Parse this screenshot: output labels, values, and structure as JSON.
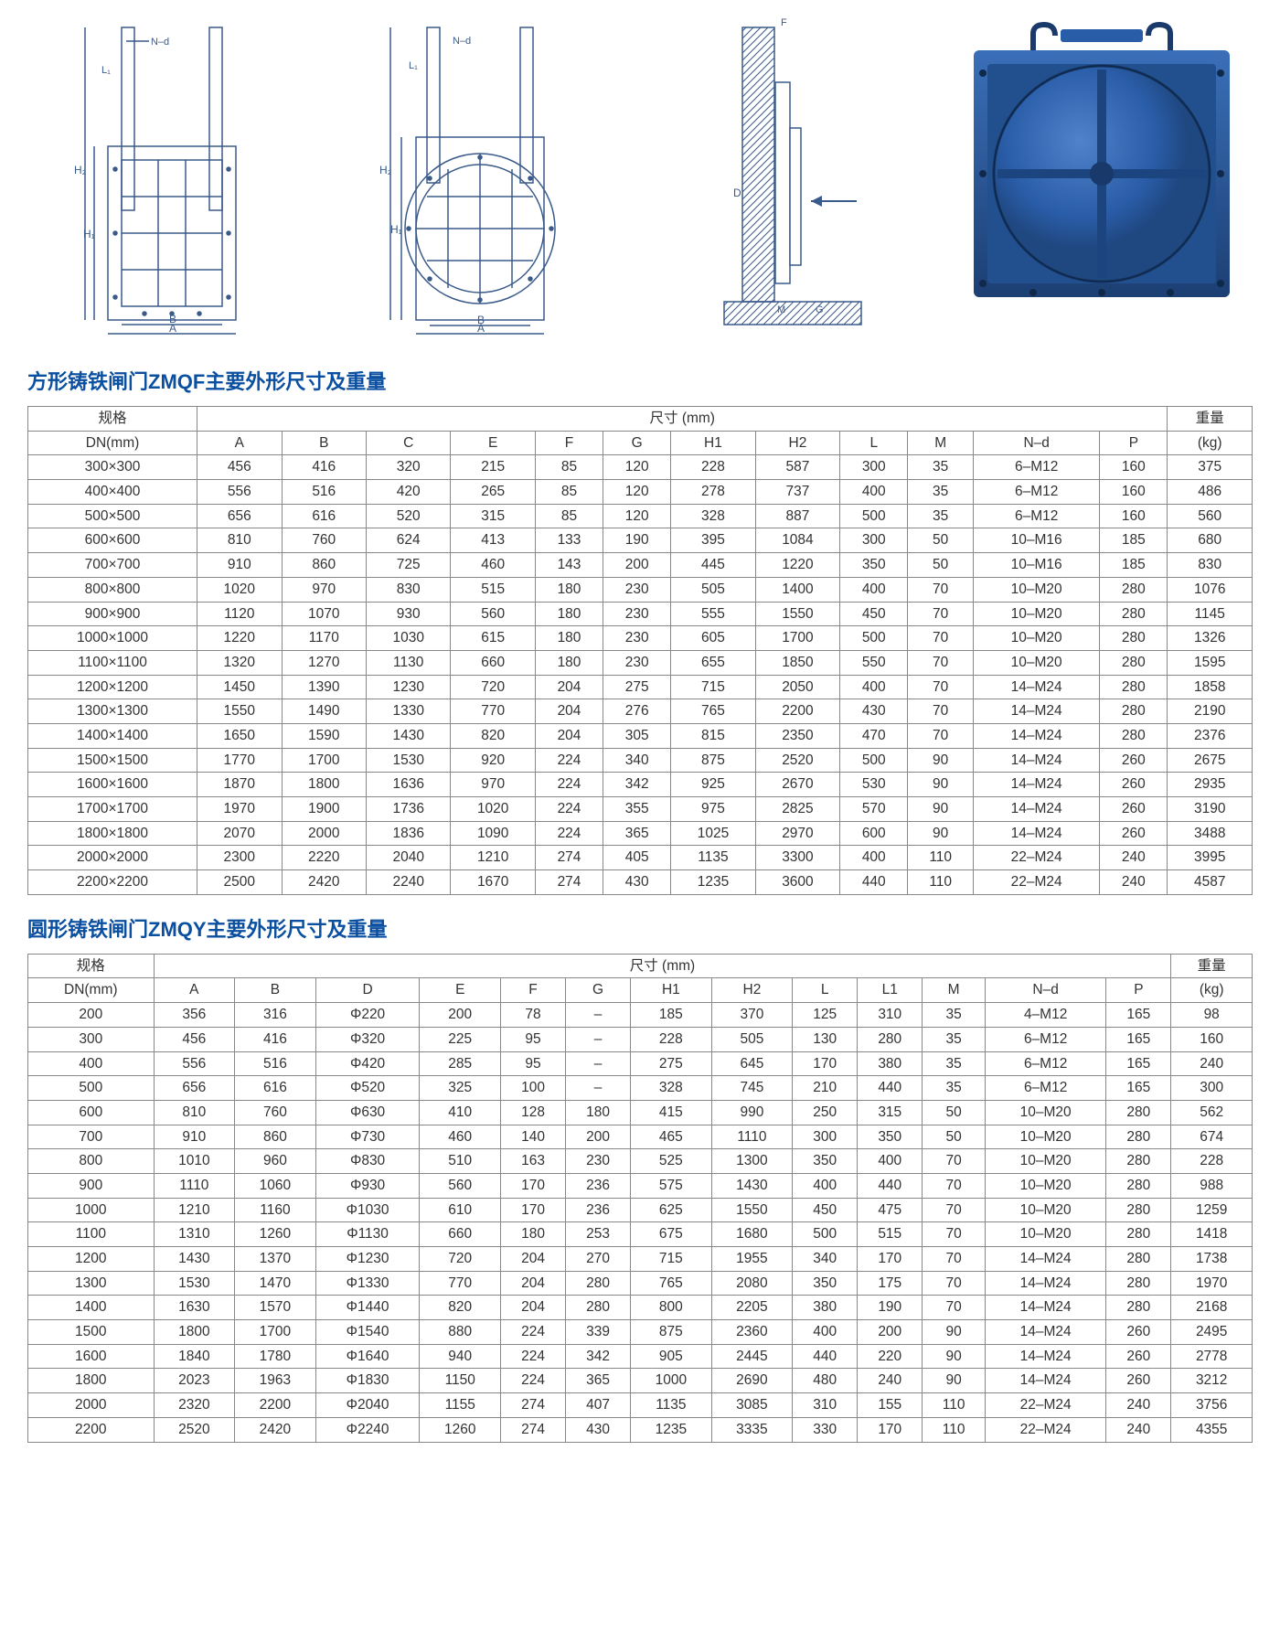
{
  "title1": "方形铸铁闸门ZMQF主要外形尺寸及重量",
  "title2": "圆形铸铁闸门ZMQY主要外形尺寸及重量",
  "spec_label": "规格",
  "dim_label": "尺寸 (mm)",
  "weight_label": "重量",
  "weight_unit": "(kg)",
  "dn_label": "DN(mm)",
  "table1": {
    "columns": [
      "A",
      "B",
      "C",
      "E",
      "F",
      "G",
      "H1",
      "H2",
      "L",
      "M",
      "N–d",
      "P"
    ],
    "rows": [
      [
        "300×300",
        "456",
        "416",
        "320",
        "215",
        "85",
        "120",
        "228",
        "587",
        "300",
        "35",
        "6–M12",
        "160",
        "375"
      ],
      [
        "400×400",
        "556",
        "516",
        "420",
        "265",
        "85",
        "120",
        "278",
        "737",
        "400",
        "35",
        "6–M12",
        "160",
        "486"
      ],
      [
        "500×500",
        "656",
        "616",
        "520",
        "315",
        "85",
        "120",
        "328",
        "887",
        "500",
        "35",
        "6–M12",
        "160",
        "560"
      ],
      [
        "600×600",
        "810",
        "760",
        "624",
        "413",
        "133",
        "190",
        "395",
        "1084",
        "300",
        "50",
        "10–M16",
        "185",
        "680"
      ],
      [
        "700×700",
        "910",
        "860",
        "725",
        "460",
        "143",
        "200",
        "445",
        "1220",
        "350",
        "50",
        "10–M16",
        "185",
        "830"
      ],
      [
        "800×800",
        "1020",
        "970",
        "830",
        "515",
        "180",
        "230",
        "505",
        "1400",
        "400",
        "70",
        "10–M20",
        "280",
        "1076"
      ],
      [
        "900×900",
        "1120",
        "1070",
        "930",
        "560",
        "180",
        "230",
        "555",
        "1550",
        "450",
        "70",
        "10–M20",
        "280",
        "1145"
      ],
      [
        "1000×1000",
        "1220",
        "1170",
        "1030",
        "615",
        "180",
        "230",
        "605",
        "1700",
        "500",
        "70",
        "10–M20",
        "280",
        "1326"
      ],
      [
        "1100×1100",
        "1320",
        "1270",
        "1130",
        "660",
        "180",
        "230",
        "655",
        "1850",
        "550",
        "70",
        "10–M20",
        "280",
        "1595"
      ],
      [
        "1200×1200",
        "1450",
        "1390",
        "1230",
        "720",
        "204",
        "275",
        "715",
        "2050",
        "400",
        "70",
        "14–M24",
        "280",
        "1858"
      ],
      [
        "1300×1300",
        "1550",
        "1490",
        "1330",
        "770",
        "204",
        "276",
        "765",
        "2200",
        "430",
        "70",
        "14–M24",
        "280",
        "2190"
      ],
      [
        "1400×1400",
        "1650",
        "1590",
        "1430",
        "820",
        "204",
        "305",
        "815",
        "2350",
        "470",
        "70",
        "14–M24",
        "280",
        "2376"
      ],
      [
        "1500×1500",
        "1770",
        "1700",
        "1530",
        "920",
        "224",
        "340",
        "875",
        "2520",
        "500",
        "90",
        "14–M24",
        "260",
        "2675"
      ],
      [
        "1600×1600",
        "1870",
        "1800",
        "1636",
        "970",
        "224",
        "342",
        "925",
        "2670",
        "530",
        "90",
        "14–M24",
        "260",
        "2935"
      ],
      [
        "1700×1700",
        "1970",
        "1900",
        "1736",
        "1020",
        "224",
        "355",
        "975",
        "2825",
        "570",
        "90",
        "14–M24",
        "260",
        "3190"
      ],
      [
        "1800×1800",
        "2070",
        "2000",
        "1836",
        "1090",
        "224",
        "365",
        "1025",
        "2970",
        "600",
        "90",
        "14–M24",
        "260",
        "3488"
      ],
      [
        "2000×2000",
        "2300",
        "2220",
        "2040",
        "1210",
        "274",
        "405",
        "1135",
        "3300",
        "400",
        "110",
        "22–M24",
        "240",
        "3995"
      ],
      [
        "2200×2200",
        "2500",
        "2420",
        "2240",
        "1670",
        "274",
        "430",
        "1235",
        "3600",
        "440",
        "110",
        "22–M24",
        "240",
        "4587"
      ]
    ]
  },
  "table2": {
    "columns": [
      "A",
      "B",
      "D",
      "E",
      "F",
      "G",
      "H1",
      "H2",
      "L",
      "L1",
      "M",
      "N–d",
      "P"
    ],
    "rows": [
      [
        "200",
        "356",
        "316",
        "Φ220",
        "200",
        "78",
        "–",
        "185",
        "370",
        "125",
        "310",
        "35",
        "4–M12",
        "165",
        "98"
      ],
      [
        "300",
        "456",
        "416",
        "Φ320",
        "225",
        "95",
        "–",
        "228",
        "505",
        "130",
        "280",
        "35",
        "6–M12",
        "165",
        "160"
      ],
      [
        "400",
        "556",
        "516",
        "Φ420",
        "285",
        "95",
        "–",
        "275",
        "645",
        "170",
        "380",
        "35",
        "6–M12",
        "165",
        "240"
      ],
      [
        "500",
        "656",
        "616",
        "Φ520",
        "325",
        "100",
        "–",
        "328",
        "745",
        "210",
        "440",
        "35",
        "6–M12",
        "165",
        "300"
      ],
      [
        "600",
        "810",
        "760",
        "Φ630",
        "410",
        "128",
        "180",
        "415",
        "990",
        "250",
        "315",
        "50",
        "10–M20",
        "280",
        "562"
      ],
      [
        "700",
        "910",
        "860",
        "Φ730",
        "460",
        "140",
        "200",
        "465",
        "1110",
        "300",
        "350",
        "50",
        "10–M20",
        "280",
        "674"
      ],
      [
        "800",
        "1010",
        "960",
        "Φ830",
        "510",
        "163",
        "230",
        "525",
        "1300",
        "350",
        "400",
        "70",
        "10–M20",
        "280",
        "228"
      ],
      [
        "900",
        "1110",
        "1060",
        "Φ930",
        "560",
        "170",
        "236",
        "575",
        "1430",
        "400",
        "440",
        "70",
        "10–M20",
        "280",
        "988"
      ],
      [
        "1000",
        "1210",
        "1160",
        "Φ1030",
        "610",
        "170",
        "236",
        "625",
        "1550",
        "450",
        "475",
        "70",
        "10–M20",
        "280",
        "1259"
      ],
      [
        "1100",
        "1310",
        "1260",
        "Φ1130",
        "660",
        "180",
        "253",
        "675",
        "1680",
        "500",
        "515",
        "70",
        "10–M20",
        "280",
        "1418"
      ],
      [
        "1200",
        "1430",
        "1370",
        "Φ1230",
        "720",
        "204",
        "270",
        "715",
        "1955",
        "340",
        "170",
        "70",
        "14–M24",
        "280",
        "1738"
      ],
      [
        "1300",
        "1530",
        "1470",
        "Φ1330",
        "770",
        "204",
        "280",
        "765",
        "2080",
        "350",
        "175",
        "70",
        "14–M24",
        "280",
        "1970"
      ],
      [
        "1400",
        "1630",
        "1570",
        "Φ1440",
        "820",
        "204",
        "280",
        "800",
        "2205",
        "380",
        "190",
        "70",
        "14–M24",
        "280",
        "2168"
      ],
      [
        "1500",
        "1800",
        "1700",
        "Φ1540",
        "880",
        "224",
        "339",
        "875",
        "2360",
        "400",
        "200",
        "90",
        "14–M24",
        "260",
        "2495"
      ],
      [
        "1600",
        "1840",
        "1780",
        "Φ1640",
        "940",
        "224",
        "342",
        "905",
        "2445",
        "440",
        "220",
        "90",
        "14–M24",
        "260",
        "2778"
      ],
      [
        "1800",
        "2023",
        "1963",
        "Φ1830",
        "1150",
        "224",
        "365",
        "1000",
        "2690",
        "480",
        "240",
        "90",
        "14–M24",
        "260",
        "3212"
      ],
      [
        "2000",
        "2320",
        "2200",
        "Φ2040",
        "1155",
        "274",
        "407",
        "1135",
        "3085",
        "310",
        "155",
        "110",
        "22–M24",
        "240",
        "3756"
      ],
      [
        "2200",
        "2520",
        "2420",
        "Φ2240",
        "1260",
        "274",
        "430",
        "1235",
        "3335",
        "330",
        "170",
        "110",
        "22–M24",
        "240",
        "4355"
      ]
    ]
  },
  "diagram_labels": {
    "A": "A",
    "B": "B",
    "D": "D",
    "F": "F",
    "G": "G",
    "M": "M",
    "Nd": "N–d",
    "L1": "L₁",
    "H1": "H₁",
    "H2": "H₂"
  },
  "colors": {
    "heading": "#0b4fa0",
    "border": "#888888",
    "gate_fill": "#2a5da8",
    "gate_dark": "#1f4780",
    "gate_rim": "#1a3a6b",
    "drawing": "#3a5a8a"
  }
}
